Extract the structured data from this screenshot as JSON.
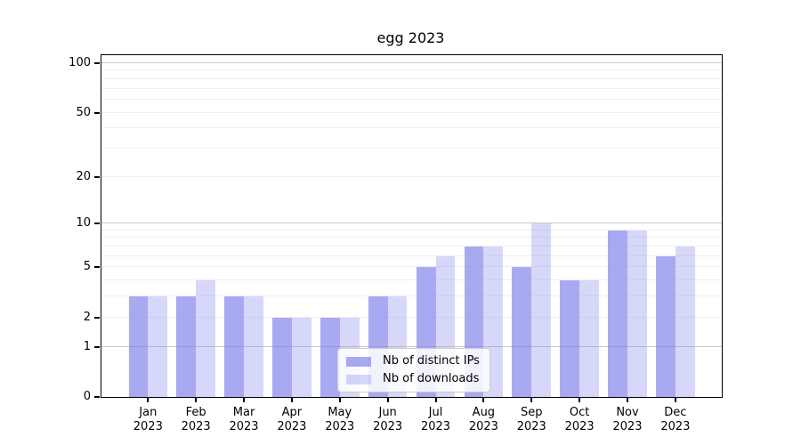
{
  "title": "egg 2023",
  "colors": {
    "bar_ips": "rgba(124,124,235,0.66)",
    "bar_downloads": "rgba(124,124,235,0.30)",
    "grid_major": "#c9c9c9",
    "grid_minor": "#efefef",
    "spine": "#000000"
  },
  "legend": {
    "items": [
      {
        "label": "Nb of distinct IPs",
        "color_key": "bar_ips"
      },
      {
        "label": "Nb of downloads",
        "color_key": "bar_downloads"
      }
    ]
  },
  "chart_data": {
    "type": "bar",
    "title": "egg 2023",
    "xlabel": "",
    "ylabel": "",
    "y_scale": "log1p (tick position proportional to log10(1+value), 0 at baseline)",
    "ylim": [
      0,
      112
    ],
    "yticks": [
      0,
      1,
      2,
      5,
      10,
      20,
      50,
      100
    ],
    "grid": {
      "major": [
        1,
        10,
        100
      ],
      "minor": [
        2,
        3,
        4,
        5,
        6,
        7,
        8,
        9,
        20,
        30,
        40,
        50,
        60,
        70,
        80,
        90
      ]
    },
    "legend_position": "lower center",
    "categories": [
      "Jan 2023",
      "Feb 2023",
      "Mar 2023",
      "Apr 2023",
      "May 2023",
      "Jun 2023",
      "Jul 2023",
      "Aug 2023",
      "Sep 2023",
      "Oct 2023",
      "Nov 2023",
      "Dec 2023"
    ],
    "series": [
      {
        "name": "Nb of distinct IPs",
        "values": [
          3,
          3,
          3,
          2,
          2,
          3,
          5,
          7,
          5,
          4,
          9,
          6
        ]
      },
      {
        "name": "Nb of downloads",
        "values": [
          3,
          4,
          3,
          2,
          2,
          3,
          6,
          7,
          10,
          4,
          9,
          7
        ]
      }
    ]
  }
}
